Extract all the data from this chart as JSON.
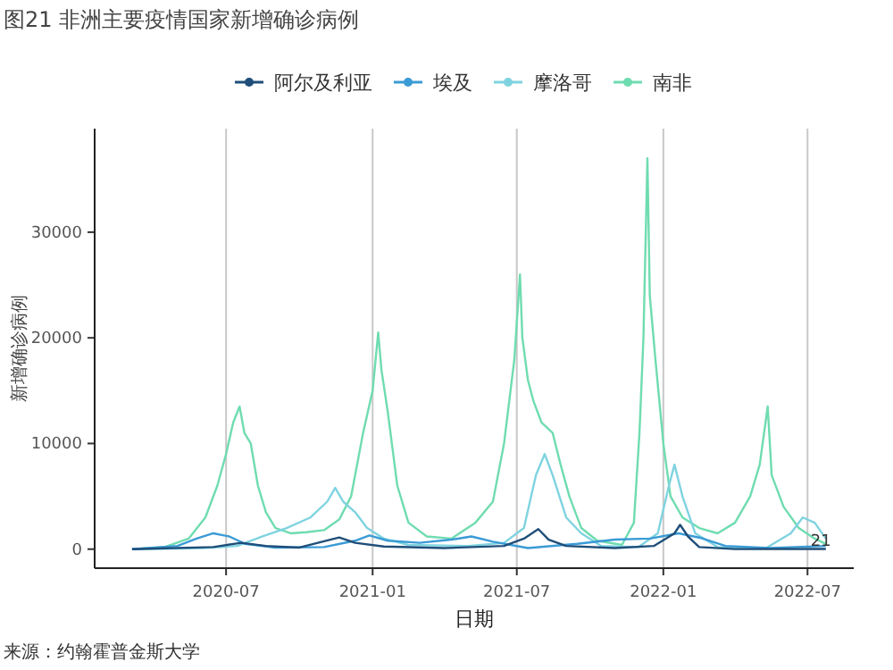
{
  "chart_data": {
    "type": "line",
    "title": "图21 非洲主要疫情国家新增确诊病例",
    "xlabel": "日期",
    "ylabel": "新增确诊病例",
    "annotations": [
      "来源：约翰霍普金斯大学",
      {
        "text": "21",
        "x": "2022-07-05",
        "y": 0
      }
    ],
    "xlim": [
      "2020-01-18",
      "2022-08-28"
    ],
    "ylim": [
      -1800,
      39800
    ],
    "xticks": [
      {
        "value": "2020-07-01",
        "label": "2020-07"
      },
      {
        "value": "2021-01-01",
        "label": "2021-01"
      },
      {
        "value": "2021-07-01",
        "label": "2021-07"
      },
      {
        "value": "2022-01-01",
        "label": "2022-01"
      },
      {
        "value": "2022-07-01",
        "label": "2022-07"
      }
    ],
    "yticks": [
      0,
      10000,
      20000,
      30000
    ],
    "grid": "x",
    "legend": "top",
    "line_style": "solid",
    "series": [
      {
        "name": "阿尔及利亚",
        "color": "#1f4e79",
        "x": [
          "2020-03-05",
          "2020-06-15",
          "2020-07-20",
          "2020-08-20",
          "2020-10-01",
          "2020-11-20",
          "2020-12-10",
          "2021-01-15",
          "2021-04-01",
          "2021-06-15",
          "2021-07-10",
          "2021-07-28",
          "2021-08-10",
          "2021-09-01",
          "2021-11-01",
          "2021-12-20",
          "2022-01-15",
          "2022-01-22",
          "2022-02-01",
          "2022-02-15",
          "2022-04-01",
          "2022-07-24"
        ],
        "values": [
          0,
          200,
          600,
          300,
          150,
          1100,
          600,
          250,
          100,
          300,
          1000,
          1900,
          900,
          300,
          100,
          300,
          1500,
          2300,
          1200,
          200,
          10,
          20
        ]
      },
      {
        "name": "埃及",
        "color": "#3a9bd5",
        "x": [
          "2020-03-05",
          "2020-05-01",
          "2020-05-25",
          "2020-06-15",
          "2020-07-05",
          "2020-07-25",
          "2020-09-01",
          "2020-11-01",
          "2020-12-10",
          "2020-12-28",
          "2021-01-20",
          "2021-03-01",
          "2021-04-10",
          "2021-05-05",
          "2021-06-01",
          "2021-07-15",
          "2021-09-15",
          "2021-11-01",
          "2021-12-15",
          "2022-01-20",
          "2022-02-15",
          "2022-03-20",
          "2022-05-15",
          "2022-07-24"
        ],
        "values": [
          0,
          300,
          1000,
          1500,
          1200,
          500,
          150,
          200,
          800,
          1300,
          800,
          600,
          900,
          1200,
          700,
          100,
          500,
          900,
          1000,
          1500,
          1100,
          300,
          100,
          300
        ]
      },
      {
        "name": "摩洛哥",
        "color": "#7fd3e0",
        "x": [
          "2020-03-05",
          "2020-06-01",
          "2020-07-15",
          "2020-08-15",
          "2020-09-15",
          "2020-10-15",
          "2020-11-05",
          "2020-11-15",
          "2020-11-25",
          "2020-12-10",
          "2020-12-25",
          "2021-01-15",
          "2021-02-15",
          "2021-05-01",
          "2021-06-15",
          "2021-07-10",
          "2021-07-25",
          "2021-08-05",
          "2021-08-15",
          "2021-09-01",
          "2021-09-20",
          "2021-10-15",
          "2021-12-01",
          "2021-12-25",
          "2022-01-08",
          "2022-01-15",
          "2022-01-25",
          "2022-02-10",
          "2022-03-10",
          "2022-05-10",
          "2022-06-10",
          "2022-06-25",
          "2022-07-10",
          "2022-07-24"
        ],
        "values": [
          0,
          100,
          300,
          1200,
          2000,
          3000,
          4500,
          5800,
          4500,
          3500,
          2000,
          1000,
          400,
          300,
          600,
          2000,
          7000,
          9000,
          7000,
          3000,
          1500,
          300,
          200,
          1500,
          6000,
          8000,
          5000,
          1500,
          200,
          100,
          1500,
          3000,
          2500,
          1000
        ]
      },
      {
        "name": "南非",
        "color": "#6fdcb0",
        "x": [
          "2020-03-05",
          "2020-04-15",
          "2020-05-15",
          "2020-06-05",
          "2020-06-20",
          "2020-07-01",
          "2020-07-10",
          "2020-07-18",
          "2020-07-24",
          "2020-08-01",
          "2020-08-10",
          "2020-08-20",
          "2020-09-01",
          "2020-09-20",
          "2020-10-10",
          "2020-11-01",
          "2020-11-20",
          "2020-12-05",
          "2020-12-20",
          "2021-01-01",
          "2021-01-08",
          "2021-01-12",
          "2021-01-20",
          "2021-02-01",
          "2021-02-15",
          "2021-03-10",
          "2021-04-10",
          "2021-05-10",
          "2021-06-01",
          "2021-06-15",
          "2021-06-28",
          "2021-07-05",
          "2021-07-08",
          "2021-07-15",
          "2021-07-22",
          "2021-08-01",
          "2021-08-15",
          "2021-08-25",
          "2021-09-05",
          "2021-09-20",
          "2021-10-10",
          "2021-11-10",
          "2021-11-25",
          "2021-12-02",
          "2021-12-07",
          "2021-12-12",
          "2021-12-15",
          "2021-12-22",
          "2022-01-01",
          "2022-01-10",
          "2022-01-25",
          "2022-02-15",
          "2022-03-10",
          "2022-04-01",
          "2022-04-20",
          "2022-05-02",
          "2022-05-12",
          "2022-05-17",
          "2022-06-01",
          "2022-06-20",
          "2022-07-10",
          "2022-07-24"
        ],
        "values": [
          0,
          200,
          1000,
          3000,
          6000,
          9000,
          12000,
          13500,
          11000,
          10000,
          6000,
          3500,
          2000,
          1500,
          1600,
          1800,
          2800,
          5000,
          11000,
          15000,
          20500,
          17000,
          13000,
          6000,
          2500,
          1200,
          1000,
          2500,
          4500,
          10000,
          18000,
          26000,
          20000,
          16000,
          14000,
          12000,
          11000,
          8000,
          5000,
          2000,
          800,
          400,
          2500,
          11000,
          20000,
          37000,
          24000,
          18000,
          10000,
          5000,
          3000,
          2000,
          1500,
          2500,
          5000,
          8000,
          13500,
          7000,
          4000,
          2000,
          1000,
          500
        ]
      }
    ]
  }
}
